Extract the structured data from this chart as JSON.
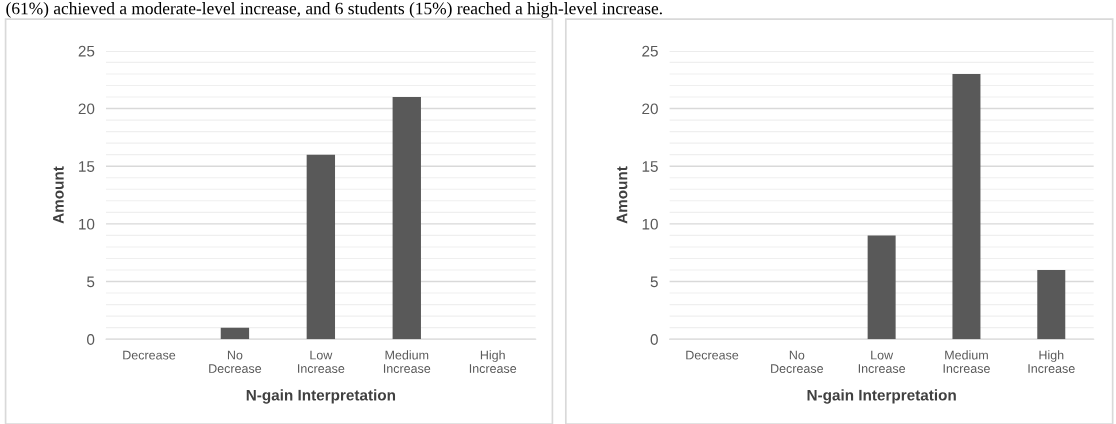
{
  "chart_data": [
    {
      "type": "bar",
      "xlabel": "N-gain Interpretation",
      "ylabel": "Amount",
      "categories": [
        "Decrease",
        "No\nDecrease",
        "Low\nIncrease",
        "Medium\nIncrease",
        "High\nIncrease"
      ],
      "values": [
        0,
        1,
        16,
        21,
        0
      ],
      "color": "#595959",
      "ylim": [
        0,
        25
      ],
      "yticks": [
        0,
        {
          "value": 1,
          "label": null
        },
        {
          "value": 2,
          "label": null
        },
        {
          "value": 3,
          "label": null
        },
        {
          "value": 4,
          "label": null
        },
        5,
        {
          "value": 6,
          "label": null
        },
        {
          "value": 7,
          "label": null
        },
        {
          "value": 8,
          "label": null
        },
        {
          "value": 9,
          "label": null
        },
        10,
        {
          "value": 11,
          "label": null
        },
        {
          "value": 12,
          "label": null
        },
        {
          "value": 13,
          "label": null
        },
        {
          "value": 14,
          "label": null
        },
        15,
        {
          "value": 16,
          "label": null
        },
        {
          "value": 17,
          "label": null
        },
        {
          "value": 18,
          "label": null
        },
        {
          "value": 19,
          "label": null
        },
        20,
        {
          "value": 21,
          "label": null
        },
        {
          "value": 22,
          "label": null
        },
        {
          "value": 23,
          "label": null
        },
        {
          "value": 24,
          "label": null
        },
        25
      ],
      "grid": "y",
      "annotations": [
        "(61%) achieved a moderate-level increase, and 6 students (15%) reached a high-level increase."
      ]
    },
    {
      "type": "bar",
      "xlabel": "N-gain Interpretation",
      "ylabel": "Amount",
      "categories": [
        "Decrease",
        "No\nDecrease",
        "Low\nIncrease",
        "Medium\nIncrease",
        "High\nIncrease"
      ],
      "values": [
        0,
        0,
        9,
        23,
        6
      ],
      "color": "#595959",
      "ylim": [
        0,
        25
      ],
      "yticks": [
        0,
        {
          "value": 1,
          "label": null
        },
        {
          "value": 2,
          "label": null
        },
        {
          "value": 3,
          "label": null
        },
        {
          "value": 4,
          "label": null
        },
        5,
        {
          "value": 6,
          "label": null
        },
        {
          "value": 7,
          "label": null
        },
        {
          "value": 8,
          "label": null
        },
        {
          "value": 9,
          "label": null
        },
        10,
        {
          "value": 11,
          "label": null
        },
        {
          "value": 12,
          "label": null
        },
        {
          "value": 13,
          "label": null
        },
        {
          "value": 14,
          "label": null
        },
        15,
        {
          "value": 16,
          "label": null
        },
        {
          "value": 17,
          "label": null
        },
        {
          "value": 18,
          "label": null
        },
        {
          "value": 19,
          "label": null
        },
        20,
        {
          "value": 21,
          "label": null
        },
        {
          "value": 22,
          "label": null
        },
        {
          "value": 23,
          "label": null
        },
        {
          "value": 24,
          "label": null
        },
        25
      ],
      "grid": "y"
    }
  ]
}
